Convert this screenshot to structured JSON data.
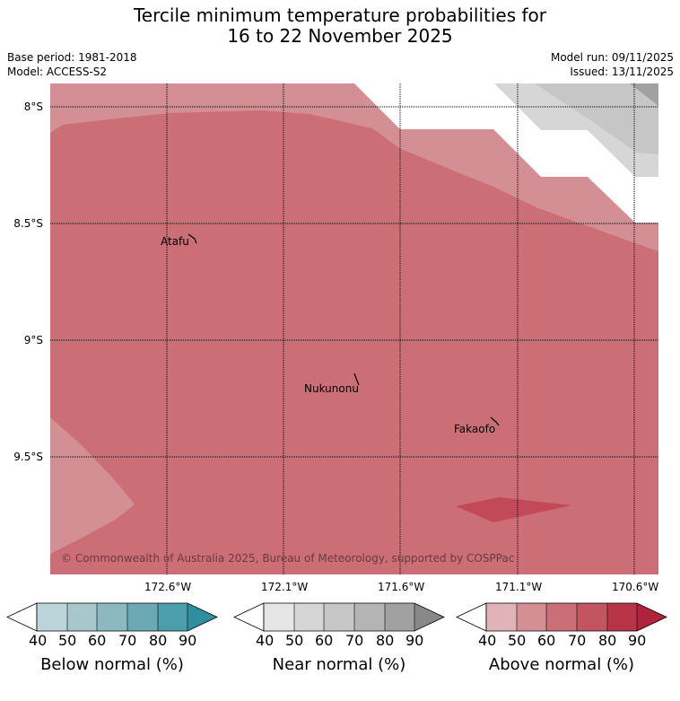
{
  "header": {
    "title_line1": "Tercile minimum temperature probabilities for",
    "title_line2": "16 to 22 November 2025",
    "base_period": "Base period: 1981-2018",
    "model": "Model: ACCESS-S2",
    "model_run": "Model run: 09/11/2025",
    "issued": "Issued: 13/11/2025"
  },
  "map": {
    "lat_labels": [
      "8°S",
      "8.5°S",
      "9°S",
      "9.5°S"
    ],
    "lon_labels": [
      "172.6°W",
      "172.1°W",
      "171.6°W",
      "171.1°W",
      "170.6°W"
    ],
    "places": [
      "Atafu",
      "Nukunonu",
      "Fakaofo"
    ],
    "copyright": "© Commonwealth of Australia 2025, Bureau of Meteorology, supported by COSPPac",
    "dominant_category": "Above normal 60-70%"
  },
  "legend": {
    "ticks": [
      "40",
      "50",
      "60",
      "70",
      "80",
      "90"
    ],
    "below": {
      "title": "Below normal (%)",
      "colors": [
        "#bcd5da",
        "#a7c7cd",
        "#8bb8c1",
        "#6aa9b5",
        "#4b9eac",
        "#2f8f9e"
      ]
    },
    "near": {
      "title": "Near normal (%)",
      "colors": [
        "#e6e6e6",
        "#d6d6d6",
        "#c6c6c6",
        "#b4b4b4",
        "#a1a1a1",
        "#888888"
      ]
    },
    "above": {
      "title": "Above normal (%)",
      "colors": [
        "#e0b3b8",
        "#d48f95",
        "#cb6e76",
        "#c35560",
        "#b83447",
        "#b0233c"
      ]
    }
  }
}
